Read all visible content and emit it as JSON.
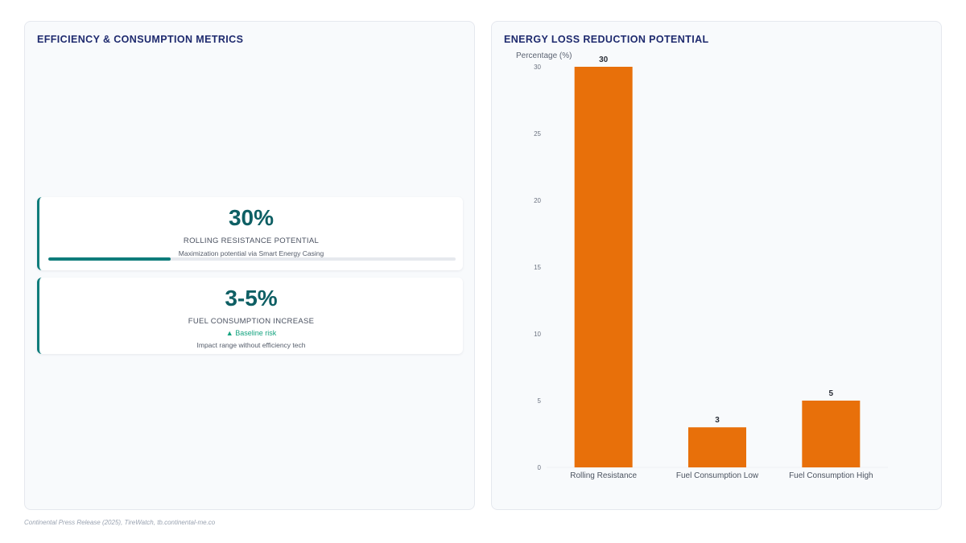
{
  "left_panel": {
    "title": "EFFICIENCY & CONSUMPTION METRICS",
    "cards": [
      {
        "value": "30%",
        "label": "ROLLING RESISTANCE POTENTIAL",
        "sub": "Maximization potential via Smart Energy Casing",
        "progress": 0.3
      },
      {
        "value": "3-5%",
        "label": "FUEL CONSUMPTION INCREASE",
        "risk": "▲ Baseline risk",
        "sub": "Impact range without efficiency tech"
      }
    ]
  },
  "right_panel": {
    "title": "ENERGY LOSS REDUCTION POTENTIAL"
  },
  "chart_data": {
    "type": "bar",
    "title": "",
    "xlabel": "",
    "ylabel": "Percentage (%)",
    "categories": [
      "Rolling Resistance",
      "Fuel Consumption Low",
      "Fuel Consumption High"
    ],
    "values": [
      30,
      3,
      5
    ],
    "ylim": [
      0,
      30
    ],
    "yticks": [
      0,
      5,
      10,
      15,
      20,
      25,
      30
    ],
    "data_labels": true,
    "bar_color": "#e8700a",
    "grid": false,
    "legend": "none"
  },
  "footnote": "Continental Press Release (2025), TireWatch, tb.continental-me.co",
  "colors": {
    "accent_teal": "#0e7c7b",
    "bar_orange": "#e8700a",
    "risk_green": "#14a37f",
    "title_navy": "#1e2a6e"
  }
}
